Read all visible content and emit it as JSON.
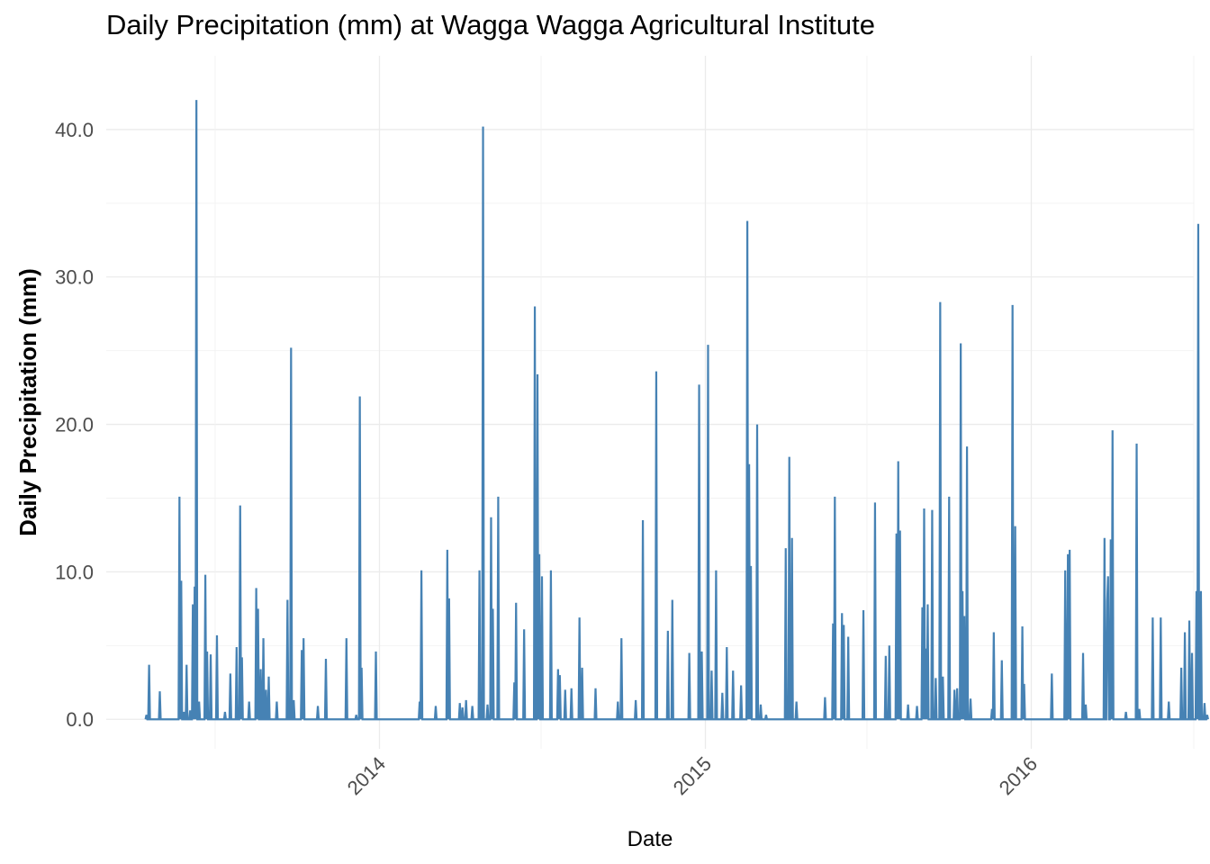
{
  "chart_data": {
    "type": "line",
    "title": "Daily Precipitation (mm) at Wagga Wagga Agricultural Institute",
    "xlabel": "Date",
    "ylabel": "Daily Precipitation (mm)",
    "xlim": [
      "2013-03-01",
      "2016-07-01"
    ],
    "ylim": [
      -2.0,
      45.0
    ],
    "x_ticks": [
      "2014",
      "2015",
      "2016"
    ],
    "x_tick_dates": [
      "2014-01-01",
      "2015-01-01",
      "2016-01-01"
    ],
    "x_tick_rotation_deg": 45,
    "y_ticks": [
      0,
      10,
      20,
      30,
      40
    ],
    "y_tick_labels": [
      "0.0",
      "10.0",
      "20.0",
      "30.0",
      "40.0"
    ],
    "grid": true,
    "legend": "none",
    "line_color": "#4682b4",
    "series": [
      {
        "points": [
          [
            "2013-04-15",
            0.3
          ],
          [
            "2013-04-18",
            3.7
          ],
          [
            "2013-04-30",
            1.9
          ],
          [
            "2013-05-22",
            15.1
          ],
          [
            "2013-05-24",
            9.4
          ],
          [
            "2013-05-27",
            0.5
          ],
          [
            "2013-05-30",
            3.7
          ],
          [
            "2013-06-03",
            0.6
          ],
          [
            "2013-06-06",
            7.8
          ],
          [
            "2013-06-08",
            9.0
          ],
          [
            "2013-06-10",
            42.0
          ],
          [
            "2013-06-13",
            1.2
          ],
          [
            "2013-06-20",
            9.8
          ],
          [
            "2013-06-22",
            4.6
          ],
          [
            "2013-06-26",
            4.4
          ],
          [
            "2013-07-03",
            5.7
          ],
          [
            "2013-07-12",
            0.5
          ],
          [
            "2013-07-18",
            3.1
          ],
          [
            "2013-07-25",
            4.9
          ],
          [
            "2013-07-29",
            14.5
          ],
          [
            "2013-07-31",
            4.2
          ],
          [
            "2013-08-08",
            1.2
          ],
          [
            "2013-08-16",
            8.9
          ],
          [
            "2013-08-18",
            7.5
          ],
          [
            "2013-08-21",
            3.4
          ],
          [
            "2013-08-24",
            5.5
          ],
          [
            "2013-08-27",
            2.0
          ],
          [
            "2013-08-30",
            2.9
          ],
          [
            "2013-09-08",
            1.2
          ],
          [
            "2013-09-20",
            8.1
          ],
          [
            "2013-09-24",
            25.2
          ],
          [
            "2013-09-27",
            1.3
          ],
          [
            "2013-10-06",
            4.7
          ],
          [
            "2013-10-08",
            5.5
          ],
          [
            "2013-10-24",
            0.9
          ],
          [
            "2013-11-02",
            4.1
          ],
          [
            "2013-11-25",
            5.5
          ],
          [
            "2013-12-06",
            0.3
          ],
          [
            "2013-12-10",
            21.9
          ],
          [
            "2013-12-12",
            3.5
          ],
          [
            "2013-12-28",
            4.6
          ],
          [
            "2014-02-15",
            1.2
          ],
          [
            "2014-02-17",
            10.1
          ],
          [
            "2014-03-05",
            0.9
          ],
          [
            "2014-03-18",
            11.5
          ],
          [
            "2014-03-20",
            8.2
          ],
          [
            "2014-04-01",
            1.1
          ],
          [
            "2014-04-04",
            0.8
          ],
          [
            "2014-04-08",
            1.3
          ],
          [
            "2014-04-15",
            0.9
          ],
          [
            "2014-04-23",
            10.1
          ],
          [
            "2014-04-27",
            40.2
          ],
          [
            "2014-05-02",
            1.0
          ],
          [
            "2014-05-06",
            13.7
          ],
          [
            "2014-05-08",
            7.5
          ],
          [
            "2014-05-14",
            15.1
          ],
          [
            "2014-06-01",
            2.5
          ],
          [
            "2014-06-03",
            7.9
          ],
          [
            "2014-06-12",
            6.1
          ],
          [
            "2014-06-24",
            28.0
          ],
          [
            "2014-06-27",
            23.4
          ],
          [
            "2014-06-29",
            11.2
          ],
          [
            "2014-07-02",
            9.7
          ],
          [
            "2014-07-12",
            10.1
          ],
          [
            "2014-07-20",
            3.4
          ],
          [
            "2014-07-22",
            3.0
          ],
          [
            "2014-07-28",
            2.0
          ],
          [
            "2014-08-04",
            2.1
          ],
          [
            "2014-08-13",
            6.9
          ],
          [
            "2014-08-16",
            3.5
          ],
          [
            "2014-08-31",
            2.1
          ],
          [
            "2014-09-25",
            1.2
          ],
          [
            "2014-09-29",
            5.5
          ],
          [
            "2014-10-15",
            1.3
          ],
          [
            "2014-10-23",
            13.5
          ],
          [
            "2014-11-07",
            23.6
          ],
          [
            "2014-11-20",
            6.0
          ],
          [
            "2014-11-25",
            8.1
          ],
          [
            "2014-12-14",
            4.5
          ],
          [
            "2014-12-25",
            22.7
          ],
          [
            "2014-12-28",
            4.6
          ],
          [
            "2015-01-04",
            25.4
          ],
          [
            "2015-01-08",
            3.3
          ],
          [
            "2015-01-13",
            10.1
          ],
          [
            "2015-01-20",
            1.8
          ],
          [
            "2015-01-25",
            4.9
          ],
          [
            "2015-02-01",
            3.3
          ],
          [
            "2015-02-10",
            2.3
          ],
          [
            "2015-02-17",
            33.8
          ],
          [
            "2015-02-19",
            17.3
          ],
          [
            "2015-02-21",
            10.4
          ],
          [
            "2015-02-28",
            20.0
          ],
          [
            "2015-03-04",
            1.0
          ],
          [
            "2015-03-10",
            0.3
          ],
          [
            "2015-04-01",
            11.6
          ],
          [
            "2015-04-05",
            17.8
          ],
          [
            "2015-04-08",
            12.3
          ],
          [
            "2015-04-13",
            1.2
          ],
          [
            "2015-05-15",
            1.5
          ],
          [
            "2015-05-24",
            6.5
          ],
          [
            "2015-05-26",
            15.1
          ],
          [
            "2015-06-03",
            7.2
          ],
          [
            "2015-06-05",
            6.4
          ],
          [
            "2015-06-10",
            5.6
          ],
          [
            "2015-06-27",
            7.4
          ],
          [
            "2015-07-10",
            14.7
          ],
          [
            "2015-07-22",
            4.3
          ],
          [
            "2015-07-26",
            5.0
          ],
          [
            "2015-08-03",
            12.6
          ],
          [
            "2015-08-05",
            17.5
          ],
          [
            "2015-08-07",
            12.8
          ],
          [
            "2015-08-16",
            1.0
          ],
          [
            "2015-08-26",
            0.9
          ],
          [
            "2015-09-01",
            7.6
          ],
          [
            "2015-09-03",
            14.3
          ],
          [
            "2015-09-05",
            4.8
          ],
          [
            "2015-09-07",
            7.8
          ],
          [
            "2015-09-12",
            14.2
          ],
          [
            "2015-09-16",
            2.8
          ],
          [
            "2015-09-21",
            28.3
          ],
          [
            "2015-09-24",
            2.9
          ],
          [
            "2015-10-01",
            15.1
          ],
          [
            "2015-10-07",
            2.0
          ],
          [
            "2015-10-10",
            2.1
          ],
          [
            "2015-10-14",
            25.5
          ],
          [
            "2015-10-16",
            8.7
          ],
          [
            "2015-10-18",
            7.0
          ],
          [
            "2015-10-21",
            18.5
          ],
          [
            "2015-10-25",
            1.4
          ],
          [
            "2015-11-18",
            0.7
          ],
          [
            "2015-11-20",
            5.9
          ],
          [
            "2015-11-29",
            4.0
          ],
          [
            "2015-12-11",
            28.1
          ],
          [
            "2015-12-14",
            13.1
          ],
          [
            "2015-12-22",
            6.3
          ],
          [
            "2015-12-24",
            2.4
          ],
          [
            "2016-01-24",
            3.1
          ],
          [
            "2016-02-08",
            10.1
          ],
          [
            "2016-02-11",
            11.2
          ],
          [
            "2016-02-13",
            11.5
          ],
          [
            "2016-02-28",
            4.5
          ],
          [
            "2016-03-02",
            1.0
          ],
          [
            "2016-03-23",
            12.3
          ],
          [
            "2016-03-26",
            8.0
          ],
          [
            "2016-03-27",
            9.7
          ],
          [
            "2016-03-30",
            12.2
          ],
          [
            "2016-04-01",
            19.6
          ],
          [
            "2016-04-16",
            0.5
          ],
          [
            "2016-04-28",
            18.7
          ],
          [
            "2016-05-01",
            0.7
          ],
          [
            "2016-05-16",
            6.9
          ],
          [
            "2016-05-25",
            6.9
          ],
          [
            "2016-06-03",
            1.2
          ],
          [
            "2016-06-17",
            3.5
          ],
          [
            "2016-06-21",
            5.9
          ],
          [
            "2016-06-26",
            6.7
          ],
          [
            "2016-06-29",
            4.5
          ],
          [
            "2016-07-04",
            8.7
          ],
          [
            "2016-07-06",
            33.6
          ],
          [
            "2016-07-09",
            8.7
          ],
          [
            "2016-07-13",
            1.1
          ],
          [
            "2016-07-16",
            0.3
          ]
        ],
        "start": "2013-04-14",
        "end": "2016-07-17"
      }
    ]
  }
}
